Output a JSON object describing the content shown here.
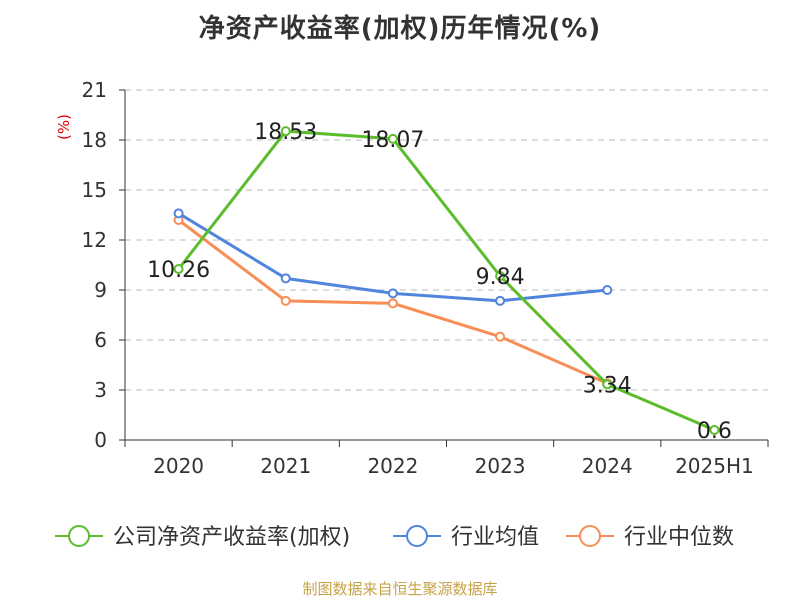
{
  "title": "净资产收益率(加权)历年情况(%)",
  "source": "制图数据来自恒生聚源数据库",
  "colors": {
    "company": "#5bbd2b",
    "avg": "#5184dd",
    "median": "#f88e55",
    "axis": "#333333",
    "grid": "#bbbbbb",
    "ylabel": "#dd0000"
  },
  "chart_data": {
    "type": "line",
    "title": "净资产收益率(加权)历年情况(%)",
    "xlabel": "",
    "ylabel": "(%)",
    "categories": [
      "2020",
      "2021",
      "2022",
      "2023",
      "2024",
      "2025H1"
    ],
    "ylim": [
      0,
      21
    ],
    "yticks": [
      0,
      3,
      6,
      9,
      12,
      15,
      18,
      21
    ],
    "grid": true,
    "legend_position": "bottom",
    "series": [
      {
        "name": "公司净资产收益率(加权)",
        "key": "company",
        "values": [
          10.26,
          18.53,
          18.07,
          9.84,
          3.34,
          0.6
        ],
        "labeled": true
      },
      {
        "name": "行业均值",
        "key": "avg",
        "values": [
          13.6,
          9.7,
          8.8,
          8.35,
          9.0,
          null
        ],
        "labeled": false
      },
      {
        "name": "行业中位数",
        "key": "median",
        "values": [
          13.2,
          8.35,
          8.2,
          6.2,
          3.4,
          null
        ],
        "labeled": false
      }
    ]
  }
}
